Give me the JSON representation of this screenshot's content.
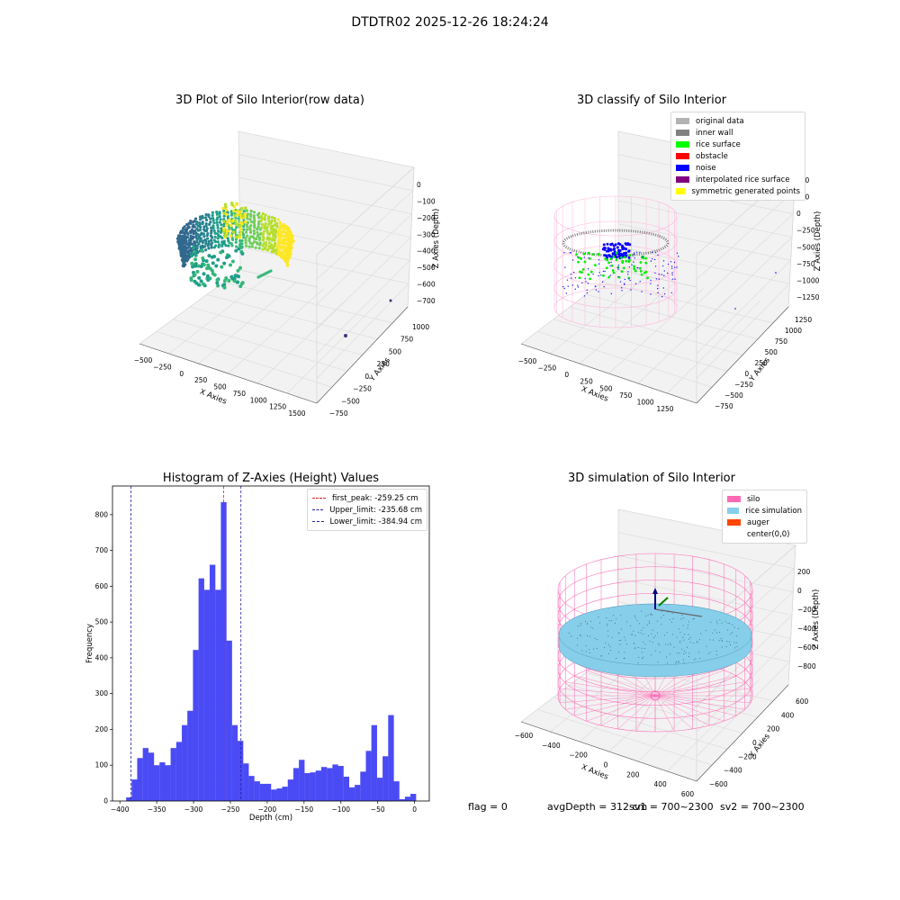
{
  "figure_title": "DTDTR02 2025-12-26 18:24:24",
  "status": {
    "flag": "flag = 0",
    "avg_depth": "avgDepth = 312 cm",
    "sv1": "sv1 = 700~2300",
    "sv2": "sv2 = 700~2300"
  },
  "colors": {
    "hist_bar": "#4b4bf5",
    "peak_line": "#e32020",
    "limit_line": "#2222aa",
    "silo": "#ff69b4",
    "rice_simulation": "#87ceeb",
    "auger": "#ff4500"
  },
  "chart_data": [
    {
      "type": "scatter",
      "subtype": "3d",
      "title": "3D Plot of Silo Interior(row data)",
      "xlabel": "X Axies",
      "ylabel": "Y Axies",
      "zlabel": "Z Axies (Depth)",
      "x_ticks": [
        "−500",
        "−250",
        "0",
        "250",
        "500",
        "750",
        "1000",
        "1250",
        "1500"
      ],
      "y_ticks": [
        "−750",
        "−500",
        "−250",
        "0",
        "250",
        "500",
        "750",
        "1000"
      ],
      "z_ticks": [
        "0",
        "−100",
        "−200",
        "−300",
        "−400",
        "−500",
        "−600",
        "−700"
      ],
      "colormap": "viridis"
    },
    {
      "type": "scatter",
      "subtype": "3d",
      "title": "3D classify of Silo Interior",
      "xlabel": "X Axies",
      "ylabel": "Y Axies",
      "zlabel": "Z Axies (Depth)",
      "x_ticks": [
        "−500",
        "−250",
        "0",
        "250",
        "500",
        "750",
        "1000",
        "1250"
      ],
      "y_ticks": [
        "−750",
        "−500",
        "−250",
        "0",
        "250",
        "500",
        "750",
        "1000",
        "1250"
      ],
      "z_ticks": [
        "500",
        "250",
        "0",
        "−250",
        "−500",
        "−750",
        "−1000",
        "−1250"
      ],
      "legend": [
        {
          "label": "original data",
          "color": "#b3b3b3"
        },
        {
          "label": "inner wall",
          "color": "#808080"
        },
        {
          "label": "rice surface",
          "color": "#00ff00"
        },
        {
          "label": "obstacle",
          "color": "#ff0000"
        },
        {
          "label": "noise",
          "color": "#0000ff"
        },
        {
          "label": "interpolated rice surface",
          "color": "#800080"
        },
        {
          "label": "symmetric generated points",
          "color": "#ffff00"
        }
      ]
    },
    {
      "type": "bar",
      "subtype": "histogram",
      "title": "Histogram of Z-Axies (Height) Values",
      "xlabel": "Depth (cm)",
      "ylabel": "Frequency",
      "xlim": [
        -410,
        20
      ],
      "ylim": [
        0,
        880
      ],
      "bin_width": 7.7,
      "x_ticks": [
        {
          "value": -400,
          "label": "−400"
        },
        {
          "value": -350,
          "label": "−350"
        },
        {
          "value": -300,
          "label": "−300"
        },
        {
          "value": -250,
          "label": "−250"
        },
        {
          "value": -200,
          "label": "−200"
        },
        {
          "value": -150,
          "label": "−150"
        },
        {
          "value": -100,
          "label": "−100"
        },
        {
          "value": -50,
          "label": "−50"
        },
        {
          "value": 0,
          "label": "0"
        }
      ],
      "y_ticks": [
        0,
        100,
        200,
        300,
        400,
        500,
        600,
        700,
        800
      ],
      "bins": [
        {
          "x0": -391.5,
          "count": 10
        },
        {
          "x0": -384.0,
          "count": 60
        },
        {
          "x0": -376.5,
          "count": 120
        },
        {
          "x0": -368.9,
          "count": 148
        },
        {
          "x0": -361.3,
          "count": 135
        },
        {
          "x0": -353.8,
          "count": 100
        },
        {
          "x0": -346.2,
          "count": 108
        },
        {
          "x0": -338.6,
          "count": 100
        },
        {
          "x0": -331.1,
          "count": 148
        },
        {
          "x0": -323.5,
          "count": 165
        },
        {
          "x0": -315.9,
          "count": 212
        },
        {
          "x0": -308.4,
          "count": 252
        },
        {
          "x0": -300.8,
          "count": 422
        },
        {
          "x0": -293.2,
          "count": 622
        },
        {
          "x0": -285.6,
          "count": 590
        },
        {
          "x0": -278.1,
          "count": 660
        },
        {
          "x0": -270.5,
          "count": 590
        },
        {
          "x0": -262.9,
          "count": 835
        },
        {
          "x0": -255.4,
          "count": 448
        },
        {
          "x0": -247.8,
          "count": 212
        },
        {
          "x0": -240.2,
          "count": 168
        },
        {
          "x0": -232.7,
          "count": 105
        },
        {
          "x0": -225.1,
          "count": 70
        },
        {
          "x0": -217.5,
          "count": 55
        },
        {
          "x0": -209.9,
          "count": 48
        },
        {
          "x0": -202.4,
          "count": 48
        },
        {
          "x0": -194.8,
          "count": 32
        },
        {
          "x0": -187.2,
          "count": 35
        },
        {
          "x0": -179.7,
          "count": 40
        },
        {
          "x0": -172.1,
          "count": 60
        },
        {
          "x0": -164.5,
          "count": 92
        },
        {
          "x0": -157.0,
          "count": 115
        },
        {
          "x0": -149.4,
          "count": 78
        },
        {
          "x0": -141.8,
          "count": 80
        },
        {
          "x0": -134.3,
          "count": 85
        },
        {
          "x0": -126.7,
          "count": 95
        },
        {
          "x0": -119.1,
          "count": 92
        },
        {
          "x0": -111.5,
          "count": 102
        },
        {
          "x0": -104.0,
          "count": 98
        },
        {
          "x0": -96.4,
          "count": 68
        },
        {
          "x0": -88.8,
          "count": 38
        },
        {
          "x0": -81.3,
          "count": 45
        },
        {
          "x0": -73.7,
          "count": 82
        },
        {
          "x0": -66.1,
          "count": 140
        },
        {
          "x0": -58.6,
          "count": 212
        },
        {
          "x0": -51.0,
          "count": 65
        },
        {
          "x0": -43.4,
          "count": 125
        },
        {
          "x0": -35.8,
          "count": 240
        },
        {
          "x0": -28.3,
          "count": 55
        },
        {
          "x0": -20.7,
          "count": 5
        },
        {
          "x0": -13.1,
          "count": 12
        },
        {
          "x0": -5.6,
          "count": 20
        }
      ],
      "vlines": [
        {
          "x": -259.25,
          "label": "first_peak: -259.25 cm",
          "color": "#e32020"
        },
        {
          "x": -235.68,
          "label": "Upper_limit: -235.68 cm",
          "color": "#2222aa"
        },
        {
          "x": -384.94,
          "label": "Lower_limit: -384.94 cm",
          "color": "#2222aa"
        }
      ],
      "legend_position": "upper right"
    },
    {
      "type": "scatter",
      "subtype": "3d",
      "title": "3D simulation of Silo Interior",
      "xlabel": "X Axies",
      "ylabel": "Y Axies",
      "zlabel": "Z Axies (Depth)",
      "x_ticks": [
        "−600",
        "−400",
        "−200",
        "0",
        "200",
        "400",
        "600"
      ],
      "y_ticks": [
        "−600",
        "−400",
        "−200",
        "0",
        "200",
        "400",
        "600"
      ],
      "z_ticks": [
        "200",
        "0",
        "−200",
        "−400",
        "−600",
        "−800"
      ],
      "legend": [
        {
          "label": "silo",
          "color": "#ff69b4"
        },
        {
          "label": "rice simulation",
          "color": "#87ceeb"
        },
        {
          "label": "auger",
          "color": "#ff4500"
        },
        {
          "label": "center(0,0)",
          "color": ""
        }
      ]
    }
  ]
}
